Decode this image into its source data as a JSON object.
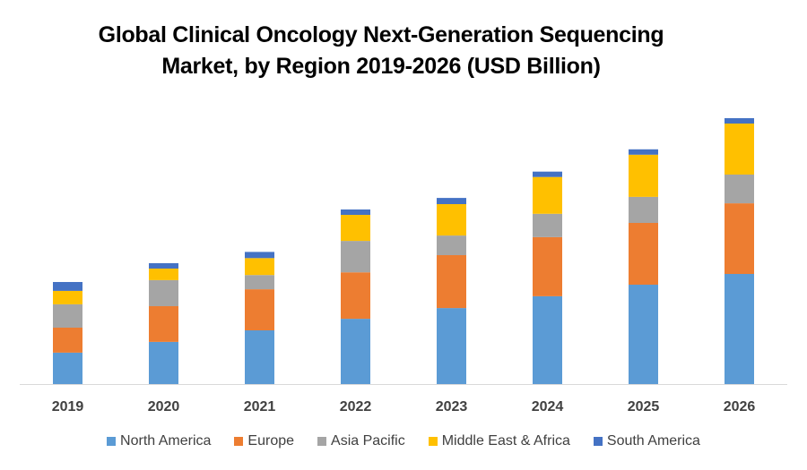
{
  "chart_data": {
    "type": "bar",
    "stacked": true,
    "title": "Global Clinical Oncology Next-Generation Sequencing Market, by Region 2019-2026 (USD Billion)",
    "title_lines": [
      "Global Clinical Oncology Next-Generation Sequencing",
      "Market, by Region 2019-2026 (USD Billion)"
    ],
    "xlabel": "",
    "ylabel": "",
    "y_axis_visible": false,
    "grid": false,
    "legend_position": "bottom",
    "categories": [
      "2019",
      "2020",
      "2021",
      "2022",
      "2023",
      "2024",
      "2025",
      "2026"
    ],
    "ylim": [
      0,
      10.5
    ],
    "series": [
      {
        "name": "North America",
        "color": "#5B9BD5",
        "values": [
          1.17,
          1.57,
          2.0,
          2.43,
          2.83,
          3.27,
          3.7,
          4.1
        ]
      },
      {
        "name": "Europe",
        "color": "#ED7D31",
        "values": [
          0.93,
          1.33,
          1.53,
          1.73,
          1.97,
          2.2,
          2.3,
          2.63
        ]
      },
      {
        "name": "Asia Pacific",
        "color": "#A5A5A5",
        "values": [
          0.87,
          0.97,
          0.53,
          1.17,
          0.73,
          0.87,
          0.97,
          1.07
        ]
      },
      {
        "name": "Middle East & Africa",
        "color": "#FFC000",
        "values": [
          0.5,
          0.43,
          0.63,
          0.97,
          1.17,
          1.37,
          1.57,
          1.9
        ]
      },
      {
        "name": "South America",
        "color": "#4472C4",
        "values": [
          0.33,
          0.2,
          0.23,
          0.2,
          0.23,
          0.2,
          0.2,
          0.2
        ]
      }
    ]
  }
}
